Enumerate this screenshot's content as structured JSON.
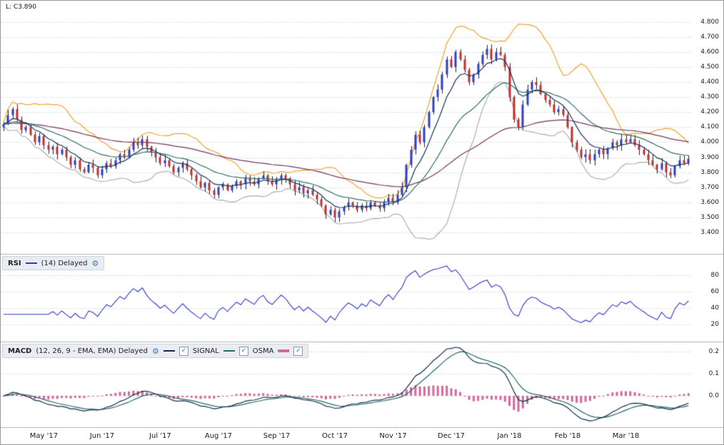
{
  "price_panel": {
    "last_label": "L: C3.890",
    "y_ticks": [
      "4.800",
      "4.700",
      "4.600",
      "4.500",
      "4.400",
      "4.300",
      "4.200",
      "4.100",
      "4.000",
      "3.900",
      "3.800",
      "3.700",
      "3.600",
      "3.500",
      "3.400"
    ]
  },
  "rsi_panel": {
    "title": "RSI",
    "params": "(14) Delayed",
    "y_ticks": [
      "80",
      "60",
      "40",
      "20"
    ]
  },
  "macd_panel": {
    "title": "MACD",
    "params": "(12, 26, 9 - EMA, EMA) Delayed",
    "signal_label": "SIGNAL",
    "osma_label": "OSMA",
    "y_ticks": [
      "0.2",
      "0.1",
      "0.0"
    ]
  },
  "x_axis": {
    "labels": [
      "May '17",
      "Jun '17",
      "Jul '17",
      "Aug '17",
      "Sep '17",
      "Oct '17",
      "Nov '17",
      "Dec '17",
      "Jan '18",
      "Feb '18",
      "Mar '18"
    ]
  },
  "colors": {
    "candle_up": "#2b3fc4",
    "candle_down": "#c22f2f",
    "wick": "#222222",
    "bb_upper": "#f0a22e",
    "bb_lower": "#a8a8a8",
    "ema_fast": "#16325c",
    "ema_mid": "#2e6e68",
    "ema_slow": "#74345a",
    "rsi": "#3038c8",
    "macd": "#132b45",
    "signal": "#1f6b62",
    "osma": "#d4679c",
    "grid": "#c6c6c6",
    "separator": "#b0b0b0"
  },
  "chart_data": [
    {
      "type": "candlestick",
      "title": "Price with Bollinger band and moving averages",
      "last_close": 3.89,
      "ylim": [
        3.35,
        4.87
      ],
      "y_ticks": [
        4.8,
        4.7,
        4.6,
        4.5,
        4.4,
        4.3,
        4.2,
        4.1,
        4.0,
        3.9,
        3.8,
        3.7,
        3.6,
        3.5,
        3.4
      ],
      "x_labels": [
        "May '17",
        "Jun '17",
        "Jul '17",
        "Aug '17",
        "Sep '17",
        "Oct '17",
        "Nov '17",
        "Dec '17",
        "Jan '18",
        "Feb '18",
        "Mar '18"
      ],
      "closes": [
        4.12,
        4.18,
        4.22,
        4.15,
        4.08,
        4.1,
        4.05,
        4.0,
        4.04,
        3.98,
        3.95,
        3.97,
        3.92,
        3.95,
        3.9,
        3.85,
        3.88,
        3.82,
        3.8,
        3.85,
        3.83,
        3.78,
        3.82,
        3.86,
        3.84,
        3.88,
        3.92,
        3.9,
        3.95,
        4.0,
        3.98,
        4.02,
        3.97,
        3.93,
        3.9,
        3.86,
        3.88,
        3.84,
        3.8,
        3.83,
        3.86,
        3.82,
        3.78,
        3.74,
        3.7,
        3.73,
        3.68,
        3.65,
        3.7,
        3.72,
        3.68,
        3.71,
        3.74,
        3.72,
        3.76,
        3.74,
        3.72,
        3.76,
        3.78,
        3.74,
        3.72,
        3.75,
        3.78,
        3.76,
        3.72,
        3.68,
        3.7,
        3.66,
        3.68,
        3.65,
        3.62,
        3.58,
        3.52,
        3.55,
        3.5,
        3.54,
        3.57,
        3.6,
        3.58,
        3.55,
        3.58,
        3.56,
        3.6,
        3.58,
        3.56,
        3.6,
        3.63,
        3.6,
        3.65,
        3.7,
        3.85,
        3.95,
        4.05,
        4.0,
        4.1,
        4.2,
        4.3,
        4.35,
        4.45,
        4.55,
        4.5,
        4.6,
        4.55,
        4.48,
        4.4,
        4.45,
        4.52,
        4.58,
        4.62,
        4.55,
        4.6,
        4.58,
        4.5,
        4.3,
        4.15,
        4.1,
        4.25,
        4.35,
        4.4,
        4.38,
        4.32,
        4.28,
        4.25,
        4.2,
        4.22,
        4.18,
        4.1,
        4.0,
        3.95,
        3.9,
        3.92,
        3.88,
        3.92,
        3.95,
        3.92,
        3.96,
        4.0,
        3.98,
        4.02,
        4.0,
        4.02,
        3.98,
        3.95,
        3.92,
        3.88,
        3.85,
        3.82,
        3.86,
        3.8,
        3.78,
        3.84,
        3.88,
        3.86,
        3.89
      ],
      "overlays": [
        {
          "name": "bollinger-upper",
          "color": "#f0a22e"
        },
        {
          "name": "bollinger-lower",
          "color": "#a8a8a8"
        },
        {
          "name": "ema-fast",
          "color": "#16325c"
        },
        {
          "name": "ema-medium",
          "color": "#2e6e68"
        },
        {
          "name": "ema-slow",
          "color": "#74345a"
        }
      ]
    },
    {
      "type": "line",
      "name": "RSI",
      "period": 14,
      "ylim": [
        10,
        95
      ],
      "y_ticks": [
        80,
        60,
        40,
        20
      ],
      "color": "#3038c8",
      "derived_from": "closes"
    },
    {
      "type": "line+bar",
      "name": "MACD",
      "params": [
        12,
        26,
        9
      ],
      "ylim": [
        -0.12,
        0.24
      ],
      "y_ticks": [
        0.2,
        0.1,
        0.0
      ],
      "series": [
        {
          "name": "MACD",
          "style": "line",
          "color": "#132b45"
        },
        {
          "name": "SIGNAL",
          "style": "line",
          "color": "#1f6b62"
        },
        {
          "name": "OSMA",
          "style": "bar",
          "color": "#d4679c"
        }
      ],
      "derived_from": "closes"
    }
  ]
}
